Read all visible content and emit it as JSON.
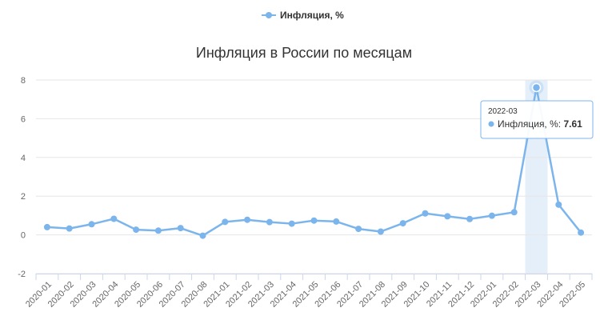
{
  "colors": {
    "series": "#7cb5ec",
    "grid": "#e6e6e6",
    "axis": "#ccd6eb",
    "highlight_band": "#cce0f5"
  },
  "legend": {
    "label": "Инфляция, %",
    "position": "top-center"
  },
  "chart_data": {
    "type": "line",
    "title": "Инфляция в России по месяцам",
    "xlabel": "",
    "ylabel": "",
    "ylim": [
      -2,
      8
    ],
    "yticks": [
      -2,
      0,
      2,
      4,
      6,
      8
    ],
    "categories": [
      "2020-01",
      "2020-02",
      "2020-03",
      "2020-04",
      "2020-05",
      "2020-06",
      "2020-07",
      "2020-08",
      "2021-01",
      "2021-02",
      "2021-03",
      "2021-04",
      "2021-05",
      "2021-06",
      "2021-07",
      "2021-08",
      "2021-09",
      "2021-10",
      "2021-11",
      "2021-12",
      "2022-01",
      "2022-02",
      "2022-03",
      "2022-04",
      "2022-05"
    ],
    "series": [
      {
        "name": "Инфляция, %",
        "values": [
          0.4,
          0.33,
          0.55,
          0.83,
          0.27,
          0.22,
          0.35,
          -0.04,
          0.67,
          0.78,
          0.66,
          0.58,
          0.74,
          0.69,
          0.31,
          0.17,
          0.6,
          1.11,
          0.96,
          0.82,
          0.99,
          1.17,
          7.61,
          1.56,
          0.12
        ]
      }
    ],
    "grid": true,
    "highlighted_index": 22
  },
  "tooltip": {
    "header": "2022-03",
    "label": "Инфляция, %:",
    "value": "7.61"
  }
}
